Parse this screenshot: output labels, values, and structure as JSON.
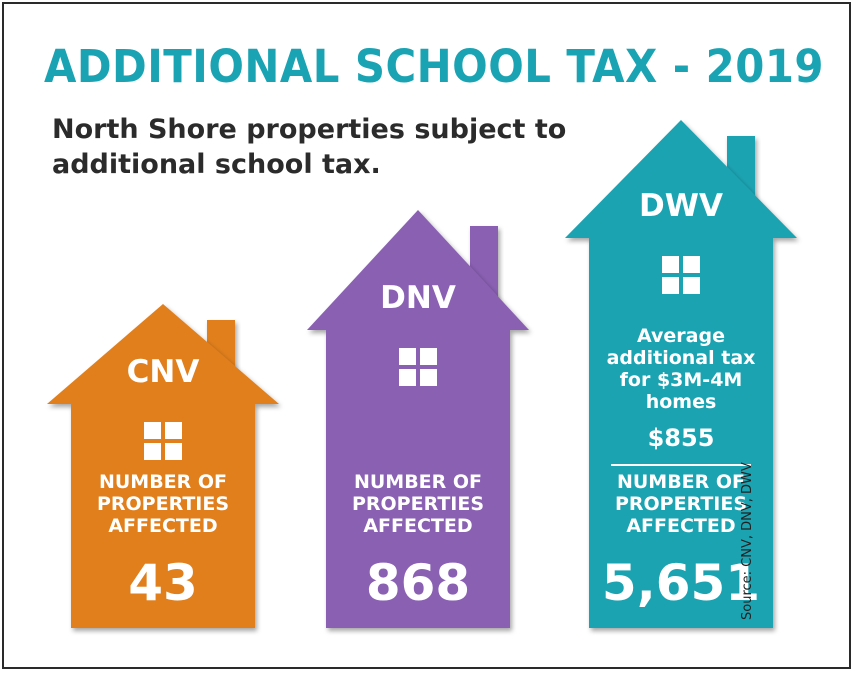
{
  "title": "ADDITIONAL SCHOOL TAX - 2019",
  "subtitle": "North Shore properties subject to additional school tax.",
  "source": "Source: CNV, DNV, DWV",
  "chart_data": {
    "type": "bar",
    "title": "ADDITIONAL SCHOOL TAX - 2019",
    "categories": [
      "CNV",
      "DNV",
      "DWV"
    ],
    "series": [
      {
        "values": [
          43,
          868,
          5651
        ],
        "value_labels": [
          "43",
          "868",
          "5,651"
        ],
        "metric_label": [
          "NUMBER OF",
          "PROPERTIES",
          "AFFECTED"
        ]
      }
    ],
    "colors": [
      "#e07f1f",
      "#8a61b3",
      "#1ea3b2"
    ],
    "annotation": {
      "category": "DWV",
      "lines": [
        "Average",
        "additional tax",
        "for $3M-4M",
        "homes"
      ],
      "value": 855,
      "value_label": "$855"
    }
  }
}
